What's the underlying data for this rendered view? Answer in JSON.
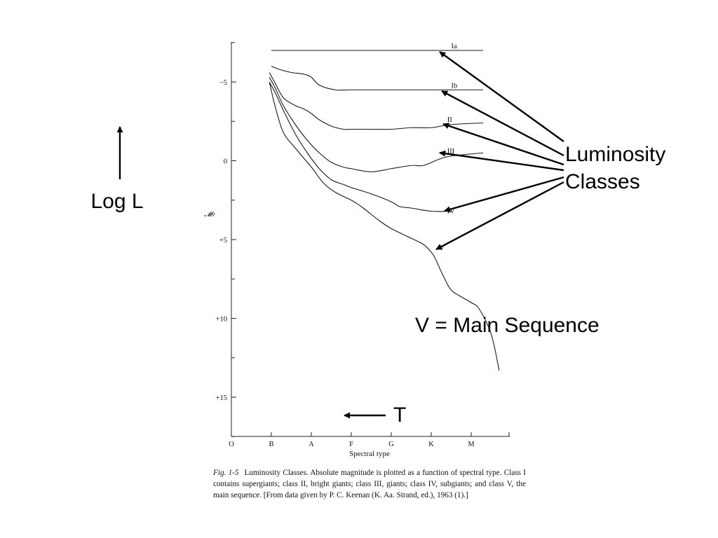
{
  "chart_data": {
    "type": "line",
    "xlabel": "Spectral type",
    "ylabel": "𝓜v",
    "x_categories": [
      "O",
      "B",
      "A",
      "F",
      "G",
      "K",
      "M"
    ],
    "y_ticks": [
      "−5",
      "0",
      "+5",
      "+10",
      "+15"
    ],
    "y_tick_values": [
      -5,
      0,
      5,
      10,
      15
    ],
    "ylim": [
      -7.5,
      17.5
    ],
    "xlim": [
      0,
      7
    ],
    "y_inverted": true,
    "grid": false,
    "series": [
      {
        "name": "Ia",
        "x": [
          1.0,
          6.3
        ],
        "y": [
          -7.0,
          -7.0
        ]
      },
      {
        "name": "Ib",
        "x": [
          1.0,
          1.2,
          1.5,
          1.8,
          2.0,
          2.2,
          2.6,
          3.0,
          4.0,
          5.0,
          5.5,
          6.3
        ],
        "y": [
          -6.0,
          -5.8,
          -5.6,
          -5.5,
          -5.3,
          -4.8,
          -4.5,
          -4.5,
          -4.5,
          -4.5,
          -4.5,
          -4.5
        ]
      },
      {
        "name": "II",
        "x": [
          0.95,
          1.1,
          1.3,
          1.6,
          1.8,
          2.0,
          2.2,
          2.5,
          2.8,
          3.0,
          3.5,
          4.0,
          4.5,
          5.0,
          5.5,
          6.3
        ],
        "y": [
          -5.6,
          -4.9,
          -4.0,
          -3.5,
          -3.3,
          -3.0,
          -2.6,
          -2.2,
          -2.0,
          -2.0,
          -2.0,
          -2.0,
          -2.1,
          -2.1,
          -2.3,
          -2.4
        ]
      },
      {
        "name": "III",
        "x": [
          0.95,
          1.1,
          1.3,
          1.6,
          1.9,
          2.2,
          2.5,
          2.8,
          3.0,
          3.5,
          4.0,
          4.5,
          4.8,
          5.2,
          5.5,
          6.3
        ],
        "y": [
          -5.3,
          -4.6,
          -3.5,
          -2.3,
          -1.3,
          -0.5,
          0.1,
          0.4,
          0.5,
          0.7,
          0.5,
          0.3,
          0.3,
          -0.1,
          -0.3,
          -0.5
        ]
      },
      {
        "name": "IV",
        "x": [
          0.95,
          1.1,
          1.3,
          1.6,
          1.9,
          2.2,
          2.5,
          2.8,
          3.0,
          3.5,
          4.0,
          4.2,
          4.5,
          5.0,
          5.5
        ],
        "y": [
          -5.0,
          -4.3,
          -3.2,
          -1.7,
          -0.5,
          0.5,
          1.2,
          1.5,
          1.7,
          2.1,
          2.6,
          2.9,
          3.0,
          3.2,
          3.2
        ]
      },
      {
        "name": "V",
        "x": [
          0.95,
          1.1,
          1.3,
          1.6,
          2.0,
          2.3,
          2.6,
          3.0,
          3.3,
          3.7,
          4.0,
          4.4,
          4.8,
          5.0,
          5.1,
          5.3,
          5.5,
          5.8,
          6.0,
          6.2,
          6.5,
          6.7
        ],
        "y": [
          -5.0,
          -3.4,
          -1.8,
          -0.8,
          0.4,
          1.4,
          2.0,
          2.5,
          3.0,
          3.8,
          4.3,
          4.8,
          5.3,
          5.8,
          6.2,
          7.3,
          8.2,
          8.7,
          9.0,
          9.4,
          11.0,
          13.3
        ]
      }
    ]
  },
  "caption": {
    "fig_label": "Fig. 1-5",
    "text": "Luminosity Classes. Absolute magnitude is plotted as a function of spectral type. Class I contains supergiants; class II, bright giants; class III, giants; class IV, subgiants; and class V, the main sequence. [From data given by P. C. Keenan (K. Aa. Strand, ed.), 1963 (1).]"
  },
  "annotations": {
    "log_l": "Log L",
    "temperature": "T",
    "luminosity_line1": "Luminosity",
    "luminosity_line2": "Classes",
    "main_sequence": "V = Main Sequence"
  }
}
